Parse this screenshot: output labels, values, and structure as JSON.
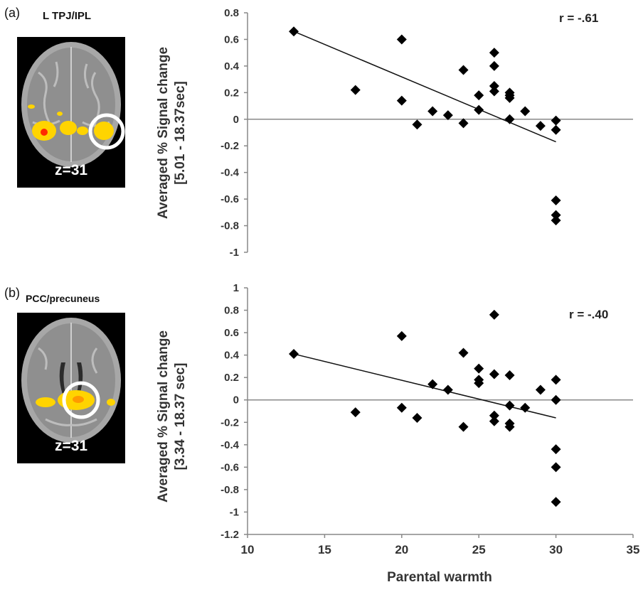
{
  "panels": [
    {
      "tag": "(a)",
      "region": "L TPJ/IPL",
      "slice": "z=31",
      "ylabel": [
        "Averaged % Signal change",
        "[5.01 - 18.37sec]"
      ],
      "r": "r = -.61"
    },
    {
      "tag": "(b)",
      "region": "PCC/precuneus",
      "slice": "z=31",
      "ylabel": [
        "Averaged % Signal change",
        "[3.34 - 18.37 sec]"
      ],
      "r": "r = -.40"
    }
  ],
  "xlabel": "Parental warmth",
  "colors": {
    "points": "#000000",
    "fit": "#111111",
    "axis": "#888888",
    "brain_activation": "#ffd400",
    "activation_peak": "#ff2a00"
  },
  "chart_data": [
    {
      "type": "scatter",
      "ylabel": "Averaged % Signal change [5.01 - 18.37sec]",
      "xlim": [
        10,
        35
      ],
      "ylim": [
        -1,
        0.8
      ],
      "yticks": [
        0.8,
        0.6,
        0.4,
        0.2,
        0,
        -0.2,
        -0.4,
        -0.6,
        -0.8,
        -1
      ],
      "points": [
        [
          13,
          0.66
        ],
        [
          17,
          0.22
        ],
        [
          20,
          0.6
        ],
        [
          20,
          0.14
        ],
        [
          21,
          -0.04
        ],
        [
          22,
          0.06
        ],
        [
          23,
          0.03
        ],
        [
          24,
          0.37
        ],
        [
          24,
          -0.03
        ],
        [
          25,
          0.18
        ],
        [
          25,
          0.07
        ],
        [
          26,
          0.5
        ],
        [
          26,
          0.4
        ],
        [
          26,
          0.25
        ],
        [
          26,
          0.21
        ],
        [
          27,
          0.2
        ],
        [
          27,
          0.18
        ],
        [
          27,
          0.16
        ],
        [
          27,
          0.0
        ],
        [
          28,
          0.06
        ],
        [
          29,
          -0.05
        ],
        [
          30,
          -0.01
        ],
        [
          30,
          -0.08
        ],
        [
          30,
          -0.61
        ],
        [
          30,
          -0.72
        ],
        [
          30,
          -0.76
        ]
      ],
      "fit": [
        [
          13,
          0.66
        ],
        [
          30,
          -0.17
        ]
      ],
      "r": "r = -.61"
    },
    {
      "type": "scatter",
      "xlabel": "Parental warmth",
      "ylabel": "Averaged % Signal change [3.34 - 18.37 sec]",
      "xlim": [
        10,
        35
      ],
      "ylim": [
        -1.2,
        1
      ],
      "xticks": [
        10,
        15,
        20,
        25,
        30,
        35
      ],
      "yticks": [
        1,
        0.8,
        0.6,
        0.4,
        0.2,
        0,
        -0.2,
        -0.4,
        -0.6,
        -0.8,
        -1,
        -1.2
      ],
      "points": [
        [
          13,
          0.41
        ],
        [
          17,
          -0.11
        ],
        [
          20,
          0.57
        ],
        [
          20,
          -0.07
        ],
        [
          21,
          -0.16
        ],
        [
          22,
          0.14
        ],
        [
          23,
          0.09
        ],
        [
          24,
          0.42
        ],
        [
          24,
          -0.24
        ],
        [
          25,
          0.28
        ],
        [
          25,
          0.18
        ],
        [
          25,
          0.15
        ],
        [
          26,
          0.76
        ],
        [
          26,
          0.23
        ],
        [
          26,
          -0.14
        ],
        [
          26,
          -0.19
        ],
        [
          27,
          0.22
        ],
        [
          27,
          -0.05
        ],
        [
          27,
          -0.21
        ],
        [
          27,
          -0.24
        ],
        [
          28,
          -0.07
        ],
        [
          29,
          0.09
        ],
        [
          30,
          0.18
        ],
        [
          30,
          0.0
        ],
        [
          30,
          -0.44
        ],
        [
          30,
          -0.6
        ],
        [
          30,
          -0.91
        ]
      ],
      "fit": [
        [
          13,
          0.41
        ],
        [
          30,
          -0.16
        ]
      ],
      "r": "r = -.40"
    }
  ]
}
